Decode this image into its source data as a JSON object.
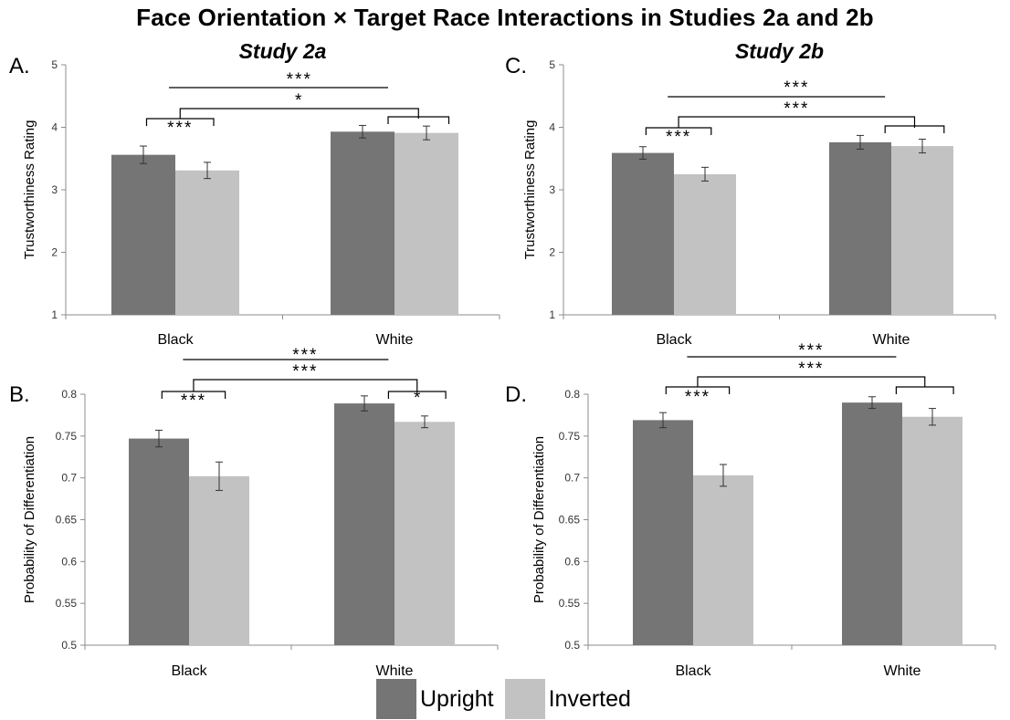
{
  "title": "Face Orientation × Target Race Interactions in Studies 2a and 2b",
  "colors": {
    "upright": "#757575",
    "inverted": "#c2c2c2",
    "axis": "#8c8c8c",
    "bracket": "#000000"
  },
  "legend": [
    {
      "name": "Upright",
      "color": "#757575"
    },
    {
      "name": "Inverted",
      "color": "#c2c2c2"
    }
  ],
  "chart_data": [
    {
      "type": "bar",
      "panel_label": "A.",
      "title": "Study 2a",
      "ylabel": "Trustworthiness Rating",
      "ylim": [
        1,
        5
      ],
      "yticks": [
        "1",
        "2",
        "3",
        "4",
        "5"
      ],
      "categories": [
        "Black",
        "White"
      ],
      "series": [
        {
          "name": "Upright",
          "values": [
            3.56,
            3.93
          ],
          "errors": [
            0.14,
            0.1
          ]
        },
        {
          "name": "Inverted",
          "values": [
            3.31,
            3.91
          ],
          "errors": [
            0.13,
            0.11
          ]
        }
      ],
      "annotations": {
        "within_black": "***",
        "within_white": "",
        "interaction": "*",
        "race_main": "***"
      }
    },
    {
      "type": "bar",
      "panel_label": "B.",
      "title": "",
      "ylabel": "Probability of Differentiation",
      "ylim": [
        0.5,
        0.8
      ],
      "yticks": [
        "0.5",
        "0.55",
        "0.6",
        "0.65",
        "0.7",
        "0.75",
        "0.8"
      ],
      "categories": [
        "Black",
        "White"
      ],
      "series": [
        {
          "name": "Upright",
          "values": [
            0.747,
            0.789
          ],
          "errors": [
            0.01,
            0.009
          ]
        },
        {
          "name": "Inverted",
          "values": [
            0.702,
            0.767
          ],
          "errors": [
            0.017,
            0.007
          ]
        }
      ],
      "annotations": {
        "within_black": "***",
        "within_white": "*",
        "interaction": "***",
        "race_main": "***"
      }
    },
    {
      "type": "bar",
      "panel_label": "C.",
      "title": "Study 2b",
      "ylabel": "Trustworthiness Rating",
      "ylim": [
        1,
        5
      ],
      "yticks": [
        "1",
        "2",
        "3",
        "4",
        "5"
      ],
      "categories": [
        "Black",
        "White"
      ],
      "series": [
        {
          "name": "Upright",
          "values": [
            3.59,
            3.76
          ],
          "errors": [
            0.1,
            0.11
          ]
        },
        {
          "name": "Inverted",
          "values": [
            3.25,
            3.7
          ],
          "errors": [
            0.11,
            0.11
          ]
        }
      ],
      "annotations": {
        "within_black": "***",
        "within_white": "",
        "interaction": "***",
        "race_main": "***"
      }
    },
    {
      "type": "bar",
      "panel_label": "D.",
      "title": "",
      "ylabel": "Probability of Differentiation",
      "ylim": [
        0.5,
        0.8
      ],
      "yticks": [
        "0.5",
        "0.55",
        "0.6",
        "0.65",
        "0.7",
        "0.75",
        "0.8"
      ],
      "categories": [
        "Black",
        "White"
      ],
      "series": [
        {
          "name": "Upright",
          "values": [
            0.769,
            0.79
          ],
          "errors": [
            0.009,
            0.007
          ]
        },
        {
          "name": "Inverted",
          "values": [
            0.703,
            0.773
          ],
          "errors": [
            0.013,
            0.01
          ]
        }
      ],
      "annotations": {
        "within_black": "***",
        "within_white": "",
        "interaction": "***",
        "race_main": "***"
      }
    }
  ]
}
